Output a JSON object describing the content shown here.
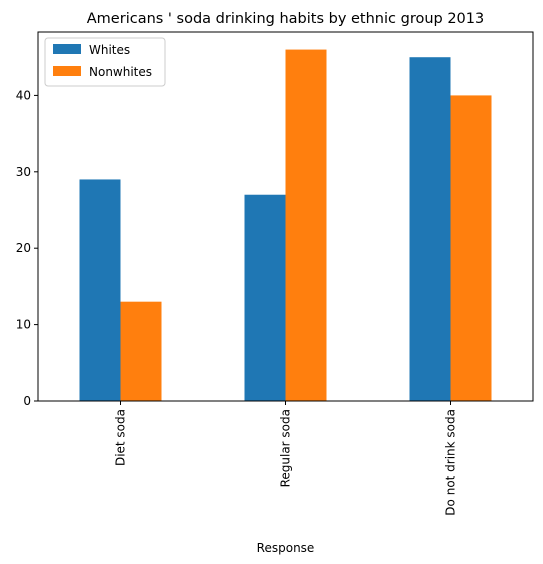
{
  "chart_data": {
    "type": "bar",
    "title": "Americans ' soda drinking habits by ethnic group 2013",
    "xlabel": "Response",
    "ylabel": "",
    "categories": [
      "Diet soda",
      "Regular soda",
      "Do not drink soda"
    ],
    "series": [
      {
        "name": "Whites",
        "values": [
          29,
          27,
          45
        ],
        "color": "#1f77b4"
      },
      {
        "name": "Nonwhites",
        "values": [
          13,
          46,
          40
        ],
        "color": "#ff7f0e"
      }
    ],
    "ylim": [
      0,
      48.3
    ],
    "yticks": [
      0,
      10,
      20,
      30,
      40
    ],
    "legend_position": "top-left",
    "grid": false
  }
}
